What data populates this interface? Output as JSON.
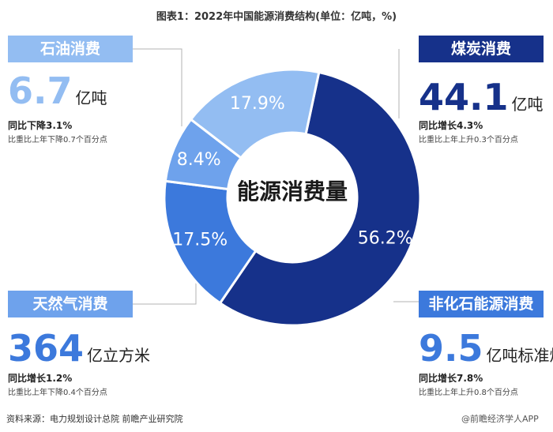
{
  "title": "图表1：2022年中国能源消费结构(单位：亿吨，%)",
  "center_label": "能源消费量",
  "colors": {
    "coal": "#16318a",
    "nonfossil": "#3c79dc",
    "gas": "#6ea2ec",
    "oil": "#93bdf2"
  },
  "cards": {
    "oil": {
      "name": "石油消费",
      "value": "6.7",
      "unit": "亿吨",
      "yoy": "同比下降3.1%",
      "share_change": "比重比上年下降0.7个百分点"
    },
    "coal": {
      "name": "煤炭消费",
      "value": "44.1",
      "unit": "亿吨",
      "yoy": "同比增长4.3%",
      "share_change": "比重比上年上升0.3个百分点"
    },
    "gas": {
      "name": "天然气消费",
      "value": "364",
      "unit": "亿立方米",
      "yoy": "同比增长1.2%",
      "share_change": "比重比上年下降0.4个百分点"
    },
    "nonfossil": {
      "name": "非化石能源消费",
      "value": "9.5",
      "unit": "亿吨标准煤",
      "yoy": "同比增长7.8%",
      "share_change": "比重比上年上升0.8个百分点"
    }
  },
  "source": "资料来源：电力规划设计总院 前瞻产业研究院",
  "brand": "@前瞻经济学人APP",
  "chart_data": {
    "type": "pie",
    "style": "donut",
    "title": "图表1：2022年中国能源消费结构(单位：亿吨，%)",
    "categories": [
      "煤炭消费",
      "非化石能源消费",
      "天然气消费",
      "石油消费"
    ],
    "values": [
      56.2,
      17.5,
      8.4,
      17.9
    ],
    "labels": [
      "56.2%",
      "17.5%",
      "8.4%",
      "17.9%"
    ],
    "center_text": "能源消费量"
  }
}
